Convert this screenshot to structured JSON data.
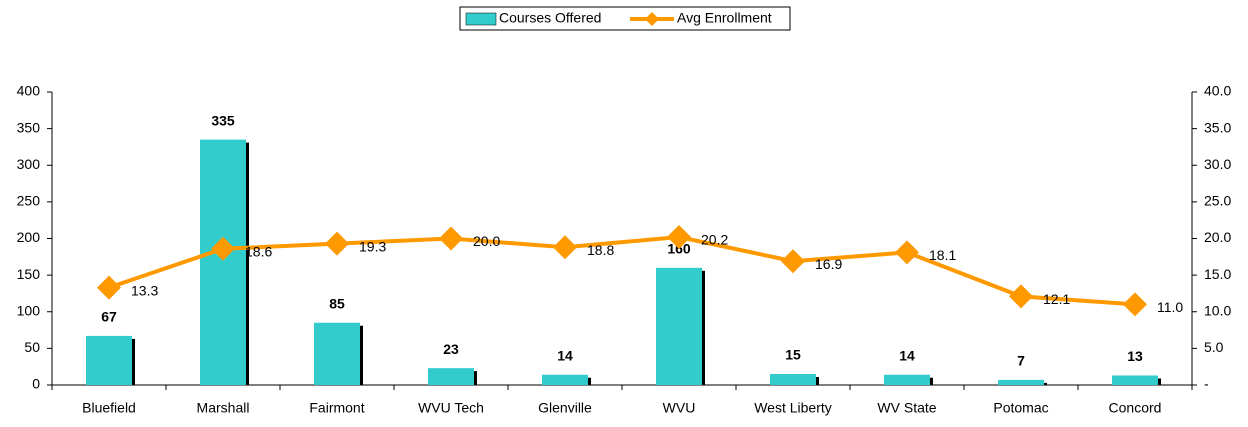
{
  "chart_data": {
    "type": "bar-line",
    "categories": [
      "Bluefield",
      "Marshall",
      "Fairmont",
      "WVU Tech",
      "Glenville",
      "WVU",
      "West Liberty",
      "WV State",
      "Potomac",
      "Concord"
    ],
    "series": [
      {
        "name": "Courses Offered",
        "color": "#33cccc",
        "type": "bar",
        "values": [
          67,
          335,
          85,
          23,
          14,
          160,
          15,
          14,
          7,
          13
        ]
      },
      {
        "name": "Avg Enrollment",
        "color": "#ff9900",
        "type": "line",
        "axis": "y2",
        "values": [
          13.3,
          18.6,
          19.3,
          20.0,
          18.8,
          20.2,
          16.9,
          18.1,
          12.1,
          11.0
        ],
        "value_labels": [
          "13.3",
          "18.6",
          "19.3",
          "20.0",
          "18.8",
          "20.2",
          "16.9",
          "18.1",
          "12.1",
          "11.0"
        ]
      }
    ],
    "ylim": [
      0,
      400
    ],
    "yticks": [
      0,
      50,
      100,
      150,
      200,
      250,
      300,
      350,
      400
    ],
    "y2lim": [
      0,
      40
    ],
    "y2ticks": [
      {
        "value": 0,
        "label": "-"
      },
      {
        "value": 5,
        "label": "5.0"
      },
      {
        "value": 10,
        "label": "10.0"
      },
      {
        "value": 15,
        "label": "15.0"
      },
      {
        "value": 20,
        "label": "20.0"
      },
      {
        "value": 25,
        "label": "25.0"
      },
      {
        "value": 30,
        "label": "30.0"
      },
      {
        "value": 35,
        "label": "35.0"
      },
      {
        "value": 40,
        "label": "40.0"
      }
    ],
    "legend": "top"
  }
}
